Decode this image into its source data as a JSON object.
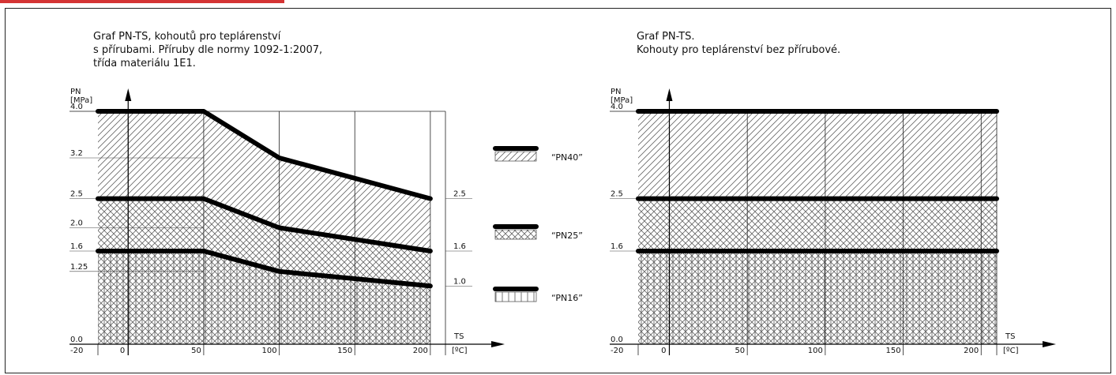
{
  "colors": {
    "accent": "#cc1111",
    "line": "#000000",
    "hatch": "#555555"
  },
  "legend": [
    {
      "label": "“PN40”",
      "hatch": "diag"
    },
    {
      "label": "“PN25”",
      "hatch": "cross"
    },
    {
      "label": "“PN16”",
      "hatch": "vertical"
    }
  ],
  "chart_data": [
    {
      "type": "line",
      "title": "Graf PN-TS, kohoutů pro teplárenství\ns přírubami. Příruby dle normy 1092-1:2007,\ntřída materiálu 1E1.",
      "ylabel_top": "PN",
      "ylabel_unit": "[MPa]",
      "xlabel_top": "TS",
      "xlabel_unit": "[ºC]",
      "xlim": [
        -20,
        210
      ],
      "ylim": [
        0,
        4.0
      ],
      "x_ticks": [
        "-20",
        "0",
        "50",
        "100",
        "150",
        "200"
      ],
      "x_tick_values": [
        -20,
        0,
        50,
        100,
        150,
        200
      ],
      "y_ticks": [
        "0.0",
        "1.25",
        "1.6",
        "2.0",
        "2.5",
        "3.2",
        "4.0"
      ],
      "y_tick_values": [
        0,
        1.25,
        1.6,
        2.0,
        2.5,
        3.2,
        4.0
      ],
      "right_labels": [
        "2.5",
        "1.6",
        "1.0"
      ],
      "right_label_values": [
        2.5,
        1.6,
        1.0
      ],
      "series": [
        {
          "name": "“PN40”",
          "x": [
            -20,
            50,
            100,
            200
          ],
          "y": [
            4.0,
            4.0,
            3.2,
            2.5
          ],
          "hatch": "diag"
        },
        {
          "name": "“PN25”",
          "x": [
            -20,
            50,
            100,
            200
          ],
          "y": [
            2.5,
            2.5,
            2.0,
            1.6
          ],
          "hatch": "cross"
        },
        {
          "name": "“PN16”",
          "x": [
            -20,
            50,
            100,
            200
          ],
          "y": [
            1.6,
            1.6,
            1.25,
            1.0
          ],
          "hatch": "vertical"
        }
      ],
      "grid": true
    },
    {
      "type": "line",
      "title": "Graf PN-TS.\nKohouty pro teplárenství bez přírubové.",
      "ylabel_top": "PN",
      "ylabel_unit": "[MPa]",
      "xlabel_top": "TS",
      "xlabel_unit": "[ºC]",
      "xlim": [
        -20,
        210
      ],
      "ylim": [
        0,
        4.0
      ],
      "x_ticks": [
        "-20",
        "0",
        "50",
        "100",
        "150",
        "200"
      ],
      "x_tick_values": [
        -20,
        0,
        50,
        100,
        150,
        200
      ],
      "y_ticks": [
        "0.0",
        "1.6",
        "2.5",
        "4.0"
      ],
      "y_tick_values": [
        0,
        1.6,
        2.5,
        4.0
      ],
      "series": [
        {
          "name": "“PN40”",
          "x": [
            -20,
            210
          ],
          "y": [
            4.0,
            4.0
          ],
          "hatch": "diag"
        },
        {
          "name": "“PN25”",
          "x": [
            -20,
            210
          ],
          "y": [
            2.5,
            2.5
          ],
          "hatch": "cross"
        },
        {
          "name": "“PN16”",
          "x": [
            -20,
            210
          ],
          "y": [
            1.6,
            1.6
          ],
          "hatch": "vertical"
        }
      ],
      "grid": true
    }
  ]
}
